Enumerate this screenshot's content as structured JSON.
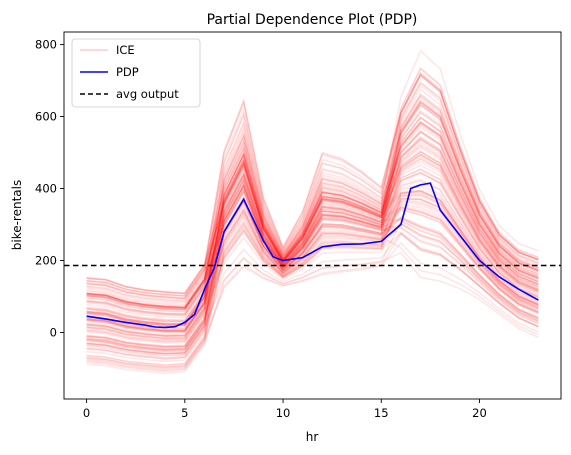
{
  "chart_data": {
    "type": "line",
    "title": "Partial Dependence Plot (PDP)",
    "xlabel": "hr",
    "ylabel": "bike-rentals",
    "xlim": [
      -1.15,
      24.15
    ],
    "ylim": [
      -185,
      835
    ],
    "xticks": [
      0,
      5,
      10,
      15,
      20
    ],
    "yticks": [
      0,
      200,
      400,
      600,
      800
    ],
    "grid": false,
    "legend": {
      "placement": "top-left",
      "entries": [
        {
          "label": "ICE",
          "color": "#ff0000",
          "style": "faint-solid"
        },
        {
          "label": "PDP",
          "color": "#0000ff",
          "style": "solid"
        },
        {
          "label": "avg output",
          "color": "#000000",
          "style": "dashed"
        }
      ]
    },
    "ice_color": "#ff0000",
    "ice_base_profile": [
      45,
      37,
      28,
      22,
      16,
      28,
      70,
      280,
      370,
      255,
      200,
      208,
      238,
      245,
      246,
      253,
      300,
      400,
      415,
      340,
      270,
      185,
      140,
      90
    ],
    "ice_envelope": {
      "min": [
        -95,
        -100,
        -110,
        -115,
        -120,
        -115,
        -40,
        90,
        140,
        130,
        120,
        125,
        130,
        140,
        150,
        165,
        220,
        150,
        140,
        120,
        90,
        50,
        10,
        -15
      ],
      "max": [
        175,
        170,
        150,
        140,
        135,
        130,
        210,
        550,
        700,
        400,
        250,
        360,
        540,
        520,
        480,
        430,
        660,
        790,
        740,
        560,
        400,
        300,
        250,
        230
      ]
    },
    "series": [
      {
        "name": "PDP",
        "color": "#0000ff",
        "x": [
          0,
          1,
          2,
          3,
          3.5,
          4,
          4.5,
          5,
          5.5,
          6,
          6.5,
          7,
          8,
          9,
          9.5,
          10,
          11,
          12,
          13,
          14,
          15,
          16,
          16.5,
          17,
          17.5,
          18,
          19,
          20,
          21,
          22,
          23
        ],
        "y": [
          45,
          37,
          28,
          20,
          15,
          14,
          16,
          28,
          50,
          120,
          180,
          280,
          370,
          255,
          210,
          200,
          208,
          238,
          245,
          246,
          253,
          300,
          400,
          410,
          415,
          340,
          270,
          200,
          155,
          120,
          90
        ]
      },
      {
        "name": "avg output",
        "color": "#000000",
        "style": "dashed",
        "value": 186
      }
    ]
  }
}
